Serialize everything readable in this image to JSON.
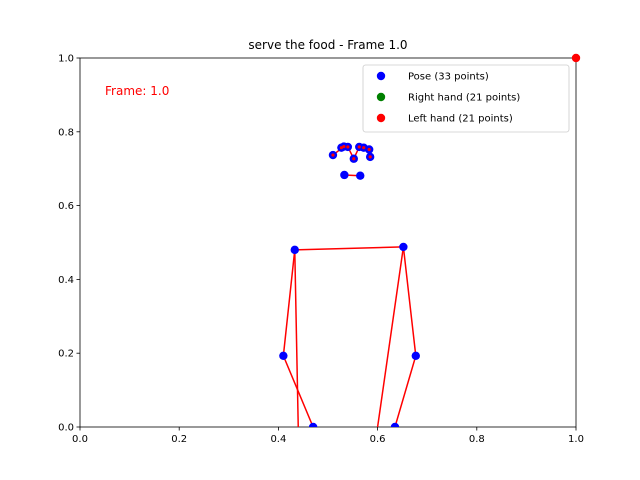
{
  "chart_data": {
    "type": "scatter",
    "title": "serve the food - Frame 1.0",
    "annotation": "Frame: 1.0",
    "annotation_color": "#ff0000",
    "xlim": [
      0,
      1
    ],
    "ylim": [
      0,
      1
    ],
    "x_ticks": [
      "0.0",
      "0.2",
      "0.4",
      "0.6",
      "0.8",
      "1.0"
    ],
    "y_ticks": [
      "0.0",
      "0.2",
      "0.4",
      "0.6",
      "0.8",
      "1.0"
    ],
    "legend_position": "top-right",
    "legend": [
      {
        "label": "Pose (33 points)",
        "color": "#0000ff"
      },
      {
        "label": "Right hand (21 points)",
        "color": "#008000"
      },
      {
        "label": "Left hand (21 points)",
        "color": "#ff0000"
      }
    ],
    "pose_points": [
      [
        0.51,
        0.737
      ],
      [
        0.527,
        0.757
      ],
      [
        0.532,
        0.76
      ],
      [
        0.54,
        0.759
      ],
      [
        0.552,
        0.727
      ],
      [
        0.563,
        0.759
      ],
      [
        0.572,
        0.757
      ],
      [
        0.583,
        0.752
      ],
      [
        0.585,
        0.732
      ],
      [
        0.533,
        0.683
      ],
      [
        0.565,
        0.681
      ],
      [
        0.433,
        0.48
      ],
      [
        0.652,
        0.488
      ],
      [
        0.41,
        0.193
      ],
      [
        0.677,
        0.193
      ],
      [
        0.47,
        0.0
      ],
      [
        0.635,
        0.0
      ]
    ],
    "skeleton_lines": [
      [
        [
          0.51,
          0.737
        ],
        [
          0.532,
          0.76
        ],
        [
          0.54,
          0.759
        ],
        [
          0.552,
          0.727
        ]
      ],
      [
        [
          0.552,
          0.727
        ],
        [
          0.563,
          0.759
        ],
        [
          0.572,
          0.757
        ],
        [
          0.583,
          0.752
        ]
      ],
      [
        [
          0.533,
          0.683
        ],
        [
          0.565,
          0.681
        ]
      ],
      [
        [
          0.433,
          0.48
        ],
        [
          0.652,
          0.488
        ]
      ],
      [
        [
          0.433,
          0.48
        ],
        [
          0.41,
          0.193
        ],
        [
          0.47,
          0.0
        ]
      ],
      [
        [
          0.433,
          0.48
        ],
        [
          0.44,
          0.0
        ]
      ],
      [
        [
          0.652,
          0.488
        ],
        [
          0.677,
          0.193
        ],
        [
          0.635,
          0.0
        ]
      ],
      [
        [
          0.652,
          0.488
        ],
        [
          0.6,
          0.0
        ]
      ]
    ],
    "left_hand_points": [
      [
        1.0,
        1.0
      ]
    ],
    "pose_color": "#0000ff",
    "line_color": "#ff0000",
    "left_hand_color": "#ff0000"
  }
}
